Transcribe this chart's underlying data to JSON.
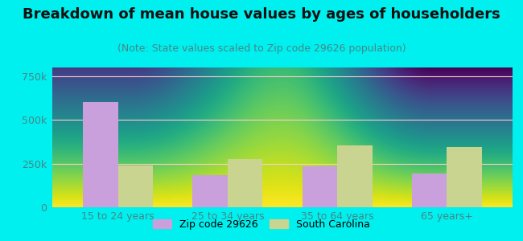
{
  "title": "Breakdown of mean house values by ages of householders",
  "subtitle": "(Note: State values scaled to Zip code 29626 population)",
  "categories": [
    "15 to 24 years",
    "25 to 34 years",
    "35 to 64 years",
    "65 years+"
  ],
  "zip_values": [
    600000,
    185000,
    235000,
    195000
  ],
  "state_values": [
    240000,
    275000,
    355000,
    345000
  ],
  "zip_color": "#c9a0dc",
  "state_color": "#c8d490",
  "background_outer": "#00efef",
  "background_inner_top": "#ffffff",
  "background_inner_bottom": "#d8f0d0",
  "ylim": [
    0,
    800000
  ],
  "yticks": [
    0,
    250000,
    500000,
    750000
  ],
  "ytick_labels": [
    "0",
    "250k",
    "500k",
    "750k"
  ],
  "legend_zip": "Zip code 29626",
  "legend_state": "South Carolina",
  "bar_width": 0.32,
  "title_fontsize": 13,
  "subtitle_fontsize": 9,
  "tick_fontsize": 9,
  "tick_color": "#448888",
  "title_color": "#111111",
  "subtitle_color": "#448888"
}
